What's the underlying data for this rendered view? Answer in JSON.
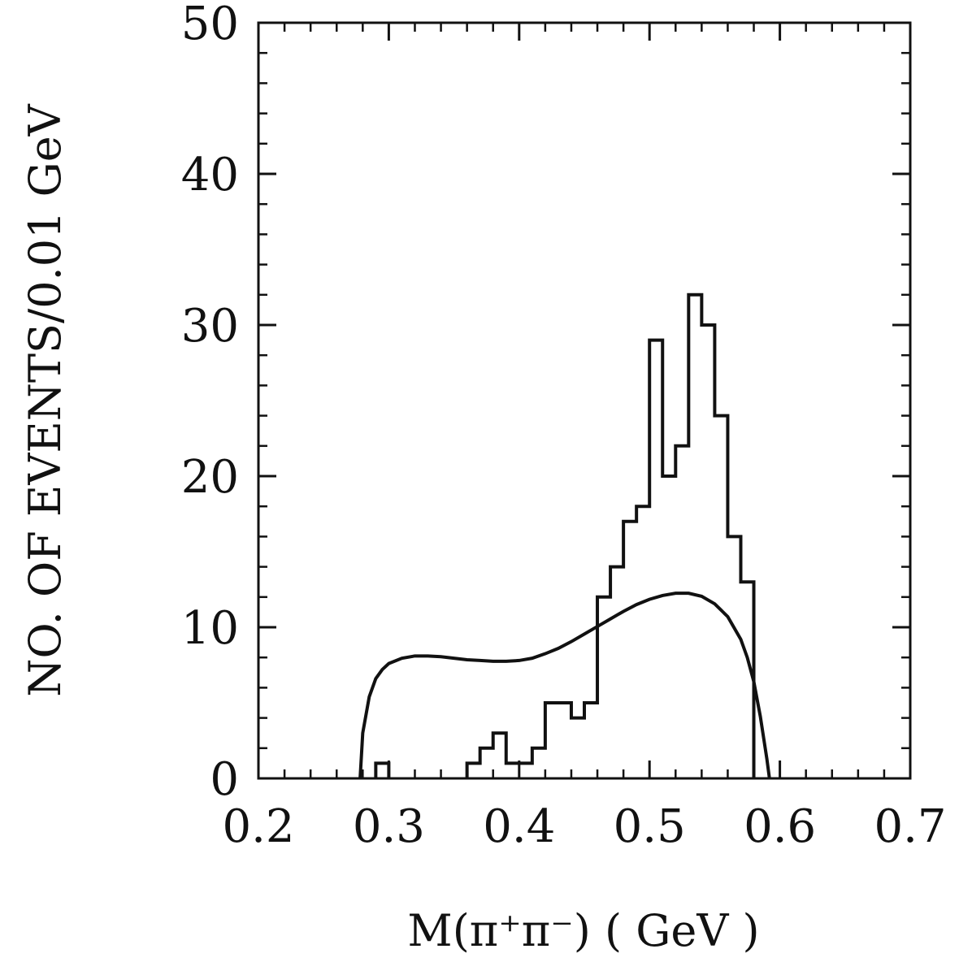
{
  "chart_data": {
    "type": "bar",
    "title": "",
    "xlabel": "M(π⁺π⁻)  (  GeV  )",
    "ylabel": "NO. OF EVENTS/0.01 GeV",
    "xlim": [
      0.2,
      0.7
    ],
    "ylim": [
      0,
      50
    ],
    "x_ticks": [
      {
        "value": 0.2,
        "label": "0.2"
      },
      {
        "value": 0.3,
        "label": "0.3"
      },
      {
        "value": 0.4,
        "label": "0.4"
      },
      {
        "value": 0.5,
        "label": "0.5"
      },
      {
        "value": 0.6,
        "label": "0.6"
      },
      {
        "value": 0.7,
        "label": "0.7"
      }
    ],
    "y_ticks": [
      {
        "value": 0,
        "label": "0"
      },
      {
        "value": 10,
        "label": "10"
      },
      {
        "value": 20,
        "label": "20"
      },
      {
        "value": 30,
        "label": "30"
      },
      {
        "value": 40,
        "label": "40"
      },
      {
        "value": 50,
        "label": "50"
      }
    ],
    "grid": false,
    "legend": "none",
    "colors": {
      "ink": "#111111",
      "background": "#ffffff"
    },
    "histogram": {
      "bin_width": 0.01,
      "bins": [
        {
          "x0": 0.29,
          "x1": 0.3,
          "count": 1
        },
        {
          "x0": 0.36,
          "x1": 0.37,
          "count": 1
        },
        {
          "x0": 0.37,
          "x1": 0.38,
          "count": 2
        },
        {
          "x0": 0.38,
          "x1": 0.39,
          "count": 3
        },
        {
          "x0": 0.39,
          "x1": 0.4,
          "count": 1
        },
        {
          "x0": 0.4,
          "x1": 0.41,
          "count": 1
        },
        {
          "x0": 0.41,
          "x1": 0.42,
          "count": 2
        },
        {
          "x0": 0.42,
          "x1": 0.43,
          "count": 5
        },
        {
          "x0": 0.43,
          "x1": 0.44,
          "count": 5
        },
        {
          "x0": 0.44,
          "x1": 0.45,
          "count": 4
        },
        {
          "x0": 0.45,
          "x1": 0.46,
          "count": 5
        },
        {
          "x0": 0.46,
          "x1": 0.47,
          "count": 12
        },
        {
          "x0": 0.47,
          "x1": 0.48,
          "count": 14
        },
        {
          "x0": 0.48,
          "x1": 0.49,
          "count": 17
        },
        {
          "x0": 0.49,
          "x1": 0.5,
          "count": 18
        },
        {
          "x0": 0.5,
          "x1": 0.51,
          "count": 29
        },
        {
          "x0": 0.51,
          "x1": 0.52,
          "count": 20
        },
        {
          "x0": 0.52,
          "x1": 0.53,
          "count": 22
        },
        {
          "x0": 0.53,
          "x1": 0.54,
          "count": 32
        },
        {
          "x0": 0.54,
          "x1": 0.55,
          "count": 30
        },
        {
          "x0": 0.55,
          "x1": 0.56,
          "count": 24
        },
        {
          "x0": 0.56,
          "x1": 0.57,
          "count": 16
        },
        {
          "x0": 0.57,
          "x1": 0.58,
          "count": 13
        }
      ]
    },
    "curve": {
      "points": [
        [
          0.278,
          0
        ],
        [
          0.28,
          3.0
        ],
        [
          0.285,
          5.4
        ],
        [
          0.29,
          6.6
        ],
        [
          0.295,
          7.2
        ],
        [
          0.3,
          7.6
        ],
        [
          0.31,
          7.95
        ],
        [
          0.32,
          8.1
        ],
        [
          0.33,
          8.1
        ],
        [
          0.34,
          8.05
        ],
        [
          0.35,
          7.95
        ],
        [
          0.36,
          7.85
        ],
        [
          0.37,
          7.8
        ],
        [
          0.38,
          7.75
        ],
        [
          0.39,
          7.75
        ],
        [
          0.4,
          7.8
        ],
        [
          0.41,
          7.95
        ],
        [
          0.42,
          8.25
        ],
        [
          0.43,
          8.6
        ],
        [
          0.44,
          9.05
        ],
        [
          0.45,
          9.55
        ],
        [
          0.46,
          10.05
        ],
        [
          0.47,
          10.55
        ],
        [
          0.48,
          11.05
        ],
        [
          0.49,
          11.5
        ],
        [
          0.5,
          11.85
        ],
        [
          0.51,
          12.1
        ],
        [
          0.52,
          12.25
        ],
        [
          0.53,
          12.25
        ],
        [
          0.54,
          12.05
        ],
        [
          0.55,
          11.55
        ],
        [
          0.56,
          10.7
        ],
        [
          0.57,
          9.2
        ],
        [
          0.575,
          8.0
        ],
        [
          0.58,
          6.4
        ],
        [
          0.585,
          4.1
        ],
        [
          0.59,
          1.3
        ],
        [
          0.592,
          0
        ]
      ]
    }
  }
}
